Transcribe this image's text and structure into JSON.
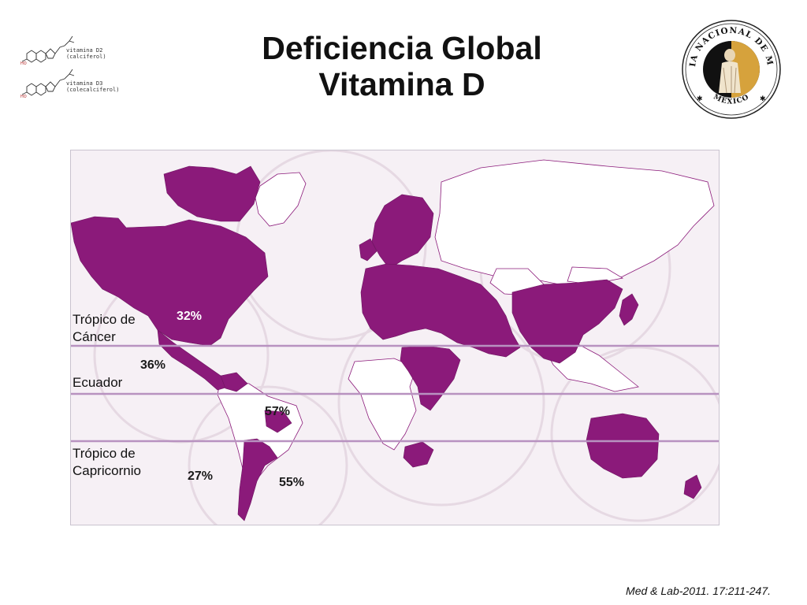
{
  "title": {
    "line1": "Deficiencia Global",
    "line2": "Vitamina D"
  },
  "molecules": [
    {
      "name": "vitamina D2",
      "formula_label": "(calciferol)"
    },
    {
      "name": "vitamina D3",
      "formula_label": "(colecalciferol)"
    }
  ],
  "logo": {
    "text_top": "ACADEMIA NACIONAL DE MEDICINA",
    "text_bottom": "MÉXICO"
  },
  "map": {
    "deficiency_color": "#8b1a7a",
    "line_color": "#b892c0",
    "lines": {
      "cancer": {
        "label_line1": "Trópico de",
        "label_line2": "Cáncer"
      },
      "equator": {
        "label": "Ecuador"
      },
      "capricorn": {
        "label_line1": "Trópico de",
        "label_line2": "Capricornio"
      }
    },
    "percentages": {
      "north_america": "32%",
      "central_america": "36%",
      "south_america_north": "57%",
      "south_america_west": "27%",
      "south_america_east": "55%"
    }
  },
  "citation": "Med & Lab-2011. 17:211-247."
}
